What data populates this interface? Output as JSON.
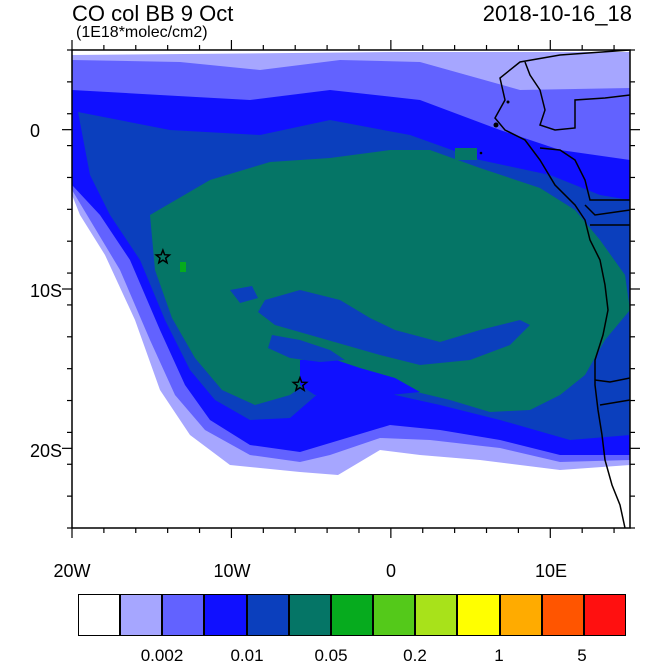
{
  "header": {
    "title": "CO col BB 9 Oct",
    "units": "(1E18*molec/cm2)",
    "timestamp": "2018-10-16_18"
  },
  "map": {
    "lon_range": [
      -20,
      15
    ],
    "lat_range": [
      -25,
      5
    ],
    "x_ticks": [
      "20W",
      "10W",
      "0",
      "10E"
    ],
    "y_ticks": [
      "0",
      "10S",
      "20S"
    ],
    "markers": [
      {
        "name": "star",
        "lon": -14.3,
        "lat": -8.0
      },
      {
        "name": "star",
        "lon": -5.7,
        "lat": -16.0
      }
    ]
  },
  "colorbar": {
    "colors": [
      "#ffffff",
      "#a6a6ff",
      "#6262ff",
      "#1010ff",
      "#0b3fbd",
      "#057566",
      "#06ab1e",
      "#54c91a",
      "#a8e21a",
      "#ffff00",
      "#ffab00",
      "#ff5500",
      "#ff1010"
    ],
    "labels": [
      "0.002",
      "0.01",
      "0.05",
      "0.2",
      "1",
      "5"
    ]
  }
}
